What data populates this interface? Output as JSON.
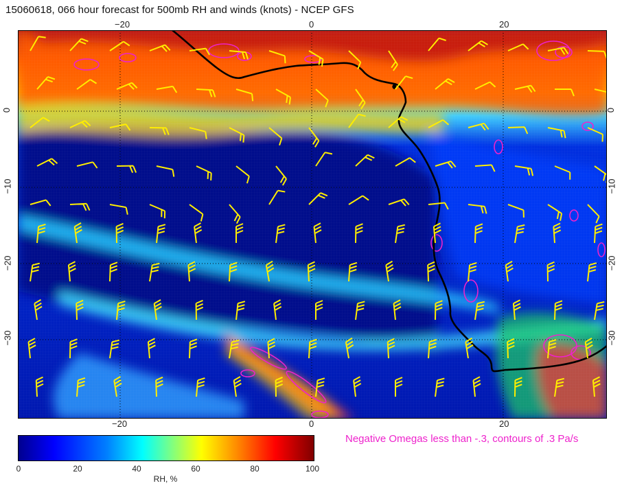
{
  "title": "15060618, 066 hour forecast for 500mb RH and winds (knots) - NCEP GFS",
  "axes": {
    "lon_ticks_top": [
      "−20",
      "0",
      "20"
    ],
    "lon_ticks_bottom": [
      "−20",
      "0",
      "20"
    ],
    "lat_ticks_left": [
      "0",
      "−10",
      "−20",
      "−30"
    ],
    "lat_ticks_right": [
      "0",
      "−10",
      "−20",
      "−30"
    ]
  },
  "legend": {
    "omega_note": "Negative Omegas less than -.3, contours of .3 Pa/s",
    "colorbar_label": "RH, %",
    "colorbar_ticks": [
      "0",
      "20",
      "40",
      "60",
      "80",
      "100"
    ]
  },
  "colors": {
    "wind_barbs": "#ffee00",
    "omega_contours": "#ee22cc",
    "coastline": "#000000",
    "rh_scale": [
      "#00008f",
      "#0000ff",
      "#0080ff",
      "#00ffff",
      "#80ff80",
      "#ffff00",
      "#ff8000",
      "#ff0000",
      "#800000"
    ]
  },
  "icons": {
    "wind_barb": "wind-barb-icon"
  }
}
